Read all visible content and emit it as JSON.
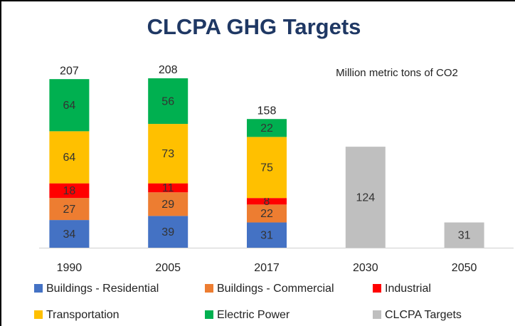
{
  "chart_data": {
    "type": "stacked_bar",
    "title": "CLCPA GHG Targets",
    "annotation": "Million metric tons of CO2",
    "categories": [
      "1990",
      "2005",
      "2017",
      "2030",
      "2050"
    ],
    "series": [
      {
        "name": "Buildings - Residential",
        "color": "#4472c4",
        "values": [
          34,
          39,
          31,
          null,
          null
        ]
      },
      {
        "name": "Buildings - Commercial",
        "color": "#ed7d31",
        "values": [
          27,
          29,
          22,
          null,
          null
        ]
      },
      {
        "name": "Industrial",
        "color": "#ff0000",
        "values": [
          18,
          11,
          8,
          null,
          null
        ]
      },
      {
        "name": "Transportation",
        "color": "#ffc000",
        "values": [
          64,
          73,
          75,
          null,
          null
        ]
      },
      {
        "name": "Electric Power",
        "color": "#00b050",
        "values": [
          64,
          56,
          22,
          null,
          null
        ]
      },
      {
        "name": "CLCPA Targets",
        "color": "#bfbfbf",
        "values": [
          null,
          null,
          null,
          124,
          31
        ]
      }
    ],
    "totals": [
      207,
      208,
      158,
      null,
      null
    ]
  }
}
